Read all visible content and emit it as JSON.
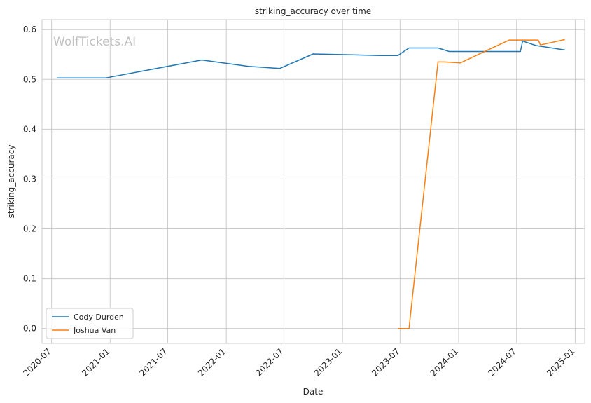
{
  "chart_data": {
    "type": "line",
    "title": "striking_accuracy over time",
    "xlabel": "Date",
    "ylabel": "striking_accuracy",
    "watermark": "WolfTickets.AI",
    "x_axis_type": "date",
    "xlim": [
      "2020-06-01",
      "2025-01-31"
    ],
    "ylim": [
      -0.03,
      0.62
    ],
    "x_ticks": [
      "2020-07",
      "2021-01",
      "2021-07",
      "2022-01",
      "2022-07",
      "2023-01",
      "2023-07",
      "2024-01",
      "2024-07",
      "2025-01"
    ],
    "y_ticks": [
      "0.0",
      "0.1",
      "0.2",
      "0.3",
      "0.4",
      "0.5",
      "0.6"
    ],
    "grid": true,
    "legend_position": "lower-left",
    "series": [
      {
        "name": "Cody Durden",
        "color": "#1f77b4",
        "points": [
          {
            "x": "2020-07-18",
            "y": 0.503
          },
          {
            "x": "2020-12-19",
            "y": 0.503
          },
          {
            "x": "2021-10-16",
            "y": 0.539
          },
          {
            "x": "2022-03-12",
            "y": 0.526
          },
          {
            "x": "2022-06-18",
            "y": 0.522
          },
          {
            "x": "2022-10-01",
            "y": 0.551
          },
          {
            "x": "2023-04-29",
            "y": 0.548
          },
          {
            "x": "2023-06-24",
            "y": 0.548
          },
          {
            "x": "2023-07-29",
            "y": 0.563
          },
          {
            "x": "2023-10-28",
            "y": 0.563
          },
          {
            "x": "2023-12-02",
            "y": 0.556
          },
          {
            "x": "2024-07-13",
            "y": 0.556
          },
          {
            "x": "2024-07-20",
            "y": 0.577
          },
          {
            "x": "2024-08-31",
            "y": 0.568
          },
          {
            "x": "2024-11-30",
            "y": 0.559
          }
        ]
      },
      {
        "name": "Joshua Van",
        "color": "#ff7f0e",
        "points": [
          {
            "x": "2023-06-24",
            "y": 0.0
          },
          {
            "x": "2023-07-29",
            "y": 0.0
          },
          {
            "x": "2023-10-28",
            "y": 0.535
          },
          {
            "x": "2023-11-18",
            "y": 0.535
          },
          {
            "x": "2024-01-06",
            "y": 0.533
          },
          {
            "x": "2024-06-08",
            "y": 0.579
          },
          {
            "x": "2024-07-20",
            "y": 0.579
          },
          {
            "x": "2024-09-07",
            "y": 0.579
          },
          {
            "x": "2024-09-14",
            "y": 0.569
          },
          {
            "x": "2024-11-30",
            "y": 0.58
          }
        ]
      }
    ]
  }
}
